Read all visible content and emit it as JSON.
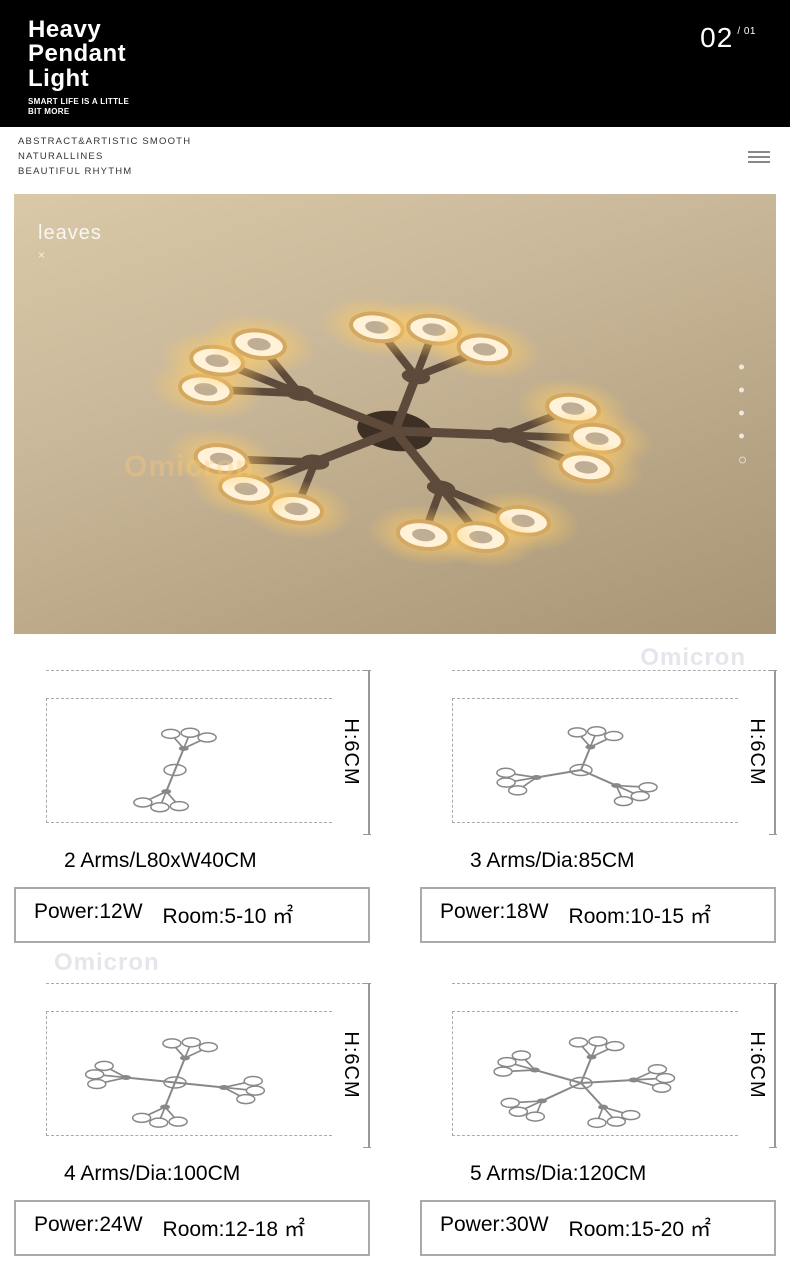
{
  "header": {
    "title_line1": "Heavy",
    "title_line2": "Pendant",
    "title_line3": "Light",
    "subtitle_line1": "SMART LIFE IS A LITTLE",
    "subtitle_line2": "BIT MORE",
    "page_current": "02",
    "page_total": "/ 01"
  },
  "tagline": {
    "line1": "ABSTRACT&ARTISTIC SMOOTH",
    "line2": "NATURALLINES",
    "line3": "BEAUTIFUL RHYTHM"
  },
  "hero": {
    "label": "leaves",
    "x_mark": "×",
    "watermark": "Omicron",
    "bg_gradient_from": "#d9c9a8",
    "bg_gradient_to": "#a89575",
    "arm_color": "#5e4a3a",
    "glow_color": "#ffcc66",
    "ring_color": "#fff2d8",
    "hub_color": "#3d2f24"
  },
  "variants": [
    {
      "arms": 2,
      "size_label": "2 Arms/L80xW40CM",
      "height_label": "H:6CM",
      "power_label": "Power:12W",
      "room_label": "Room:5-10 ㎡",
      "branch_count": 2
    },
    {
      "arms": 3,
      "size_label": "3 Arms/Dia:85CM",
      "height_label": "H:6CM",
      "power_label": "Power:18W",
      "room_label": "Room:10-15 ㎡",
      "branch_count": 3
    },
    {
      "arms": 4,
      "size_label": "4 Arms/Dia:100CM",
      "height_label": "H:6CM",
      "power_label": "Power:24W",
      "room_label": "Room:12-18 ㎡",
      "branch_count": 4
    },
    {
      "arms": 5,
      "size_label": "5 Arms/Dia:120CM",
      "height_label": "H:6CM",
      "power_label": "Power:30W",
      "room_label": "Room:15-20 ㎡",
      "branch_count": 5
    }
  ],
  "watermark_text": "Omicron",
  "colors": {
    "black": "#000000",
    "border_gray": "#aaaaaa",
    "text": "#222222"
  }
}
